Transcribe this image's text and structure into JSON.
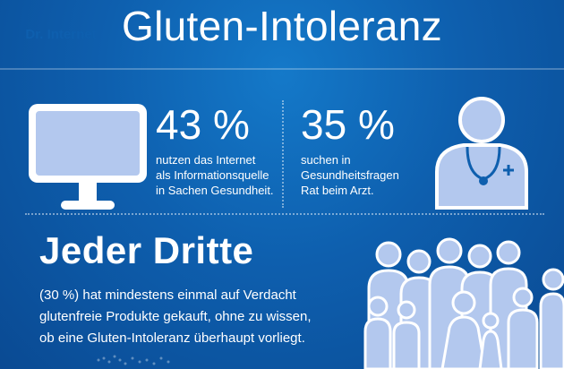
{
  "title": "Gluten-Intoleranz",
  "monitor": {
    "label": "Dr. Internet"
  },
  "stats": [
    {
      "value": "43 %",
      "lines": [
        "nutzen das Internet",
        "als Informationsquelle",
        "in Sachen Gesundheit."
      ]
    },
    {
      "value": "35 %",
      "lines": [
        "suchen in",
        "Gesundheitsfragen",
        "Rat beim Arzt."
      ]
    }
  ],
  "headline": "Jeder Dritte",
  "body": [
    "(30 %) hat mindestens einmal auf Verdacht",
    "glutenfreie Produkte gekauft, ohne zu wissen,",
    "ob eine Gluten-Intoleranz überhaupt vorliegt."
  ],
  "colors": {
    "background": "#0e5fae",
    "icon_fill": "#b3c8ee",
    "icon_outline": "#ffffff"
  }
}
